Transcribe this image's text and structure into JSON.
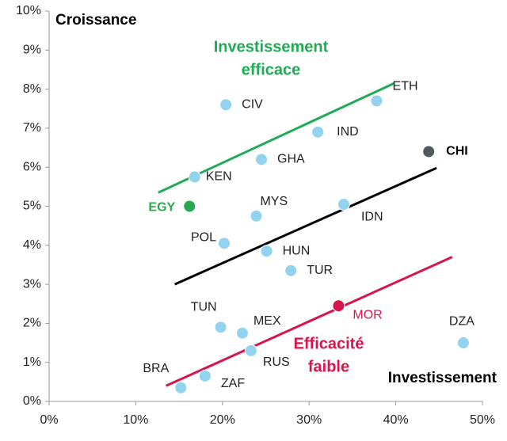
{
  "chart_data": {
    "type": "scatter",
    "xlim": [
      0,
      50
    ],
    "ylim": [
      0,
      10
    ],
    "xticks": [
      {
        "value": 0,
        "label": "0%"
      },
      {
        "value": 10,
        "label": "10%"
      },
      {
        "value": 20,
        "label": "20%"
      },
      {
        "value": 30,
        "label": "30%"
      },
      {
        "value": 40,
        "label": "40%"
      },
      {
        "value": 50,
        "label": "50%"
      }
    ],
    "yticks": [
      {
        "value": 0,
        "label": "0%"
      },
      {
        "value": 1,
        "label": "1%"
      },
      {
        "value": 2,
        "label": "2%"
      },
      {
        "value": 3,
        "label": "3%"
      },
      {
        "value": 4,
        "label": "4%"
      },
      {
        "value": 5,
        "label": "5%"
      },
      {
        "value": 6,
        "label": "6%"
      },
      {
        "value": 7,
        "label": "7%"
      },
      {
        "value": 8,
        "label": "8%"
      },
      {
        "value": 9,
        "label": "9%"
      },
      {
        "value": 10,
        "label": "10%"
      }
    ],
    "y_label": "Croissance",
    "x_label": "Investissement",
    "points": [
      {
        "name": "ETH",
        "x": 37.8,
        "y": 7.7,
        "color": "#92d3f0",
        "label_color": "#222222"
      },
      {
        "name": "CIV",
        "x": 20.4,
        "y": 7.6,
        "color": "#92d3f0",
        "label_color": "#222222"
      },
      {
        "name": "IND",
        "x": 31.0,
        "y": 6.9,
        "color": "#92d3f0",
        "label_color": "#222222"
      },
      {
        "name": "CHI",
        "x": 43.8,
        "y": 6.4,
        "color": "#4f5a60",
        "label_color": "#000000",
        "label_bold": true
      },
      {
        "name": "GHA",
        "x": 24.5,
        "y": 6.2,
        "color": "#92d3f0",
        "label_color": "#222222"
      },
      {
        "name": "KEN",
        "x": 16.8,
        "y": 5.75,
        "color": "#92d3f0",
        "label_color": "#222222"
      },
      {
        "name": "EGY",
        "x": 16.2,
        "y": 5.0,
        "color": "#2aa84f",
        "label_color": "#2aa84f",
        "label_bold": true
      },
      {
        "name": "IDN",
        "x": 34.0,
        "y": 5.05,
        "color": "#92d3f0",
        "label_color": "#222222"
      },
      {
        "name": "MYS",
        "x": 23.9,
        "y": 4.75,
        "color": "#92d3f0",
        "label_color": "#222222"
      },
      {
        "name": "POL",
        "x": 20.2,
        "y": 4.05,
        "color": "#92d3f0",
        "label_color": "#222222"
      },
      {
        "name": "HUN",
        "x": 25.1,
        "y": 3.85,
        "color": "#92d3f0",
        "label_color": "#222222"
      },
      {
        "name": "TUR",
        "x": 27.9,
        "y": 3.35,
        "color": "#92d3f0",
        "label_color": "#222222"
      },
      {
        "name": "MOR",
        "x": 33.4,
        "y": 2.45,
        "color": "#d6164a",
        "label_color": "#d6164a"
      },
      {
        "name": "TUN",
        "x": 19.8,
        "y": 1.9,
        "color": "#92d3f0",
        "label_color": "#222222"
      },
      {
        "name": "MEX",
        "x": 22.3,
        "y": 1.75,
        "color": "#92d3f0",
        "label_color": "#222222"
      },
      {
        "name": "RUS",
        "x": 23.3,
        "y": 1.3,
        "color": "#92d3f0",
        "label_color": "#222222"
      },
      {
        "name": "DZA",
        "x": 47.8,
        "y": 1.5,
        "color": "#92d3f0",
        "label_color": "#222222"
      },
      {
        "name": "ZAF",
        "x": 18.0,
        "y": 0.65,
        "color": "#92d3f0",
        "label_color": "#222222"
      },
      {
        "name": "BRA",
        "x": 15.2,
        "y": 0.35,
        "color": "#92d3f0",
        "label_color": "#222222"
      }
    ],
    "trend_lines": [
      {
        "color": "#1faa55",
        "x": [
          12.6,
          39.8
        ],
        "y": [
          5.35,
          8.15
        ]
      },
      {
        "color": "#000000",
        "x": [
          14.5,
          44.7
        ],
        "y": [
          3.0,
          5.98
        ]
      },
      {
        "color": "#d6164a",
        "x": [
          13.5,
          46.5
        ],
        "y": [
          0.4,
          3.7
        ]
      }
    ],
    "annotations": [
      {
        "lines": [
          "Investissement",
          "efficace"
        ],
        "color": "#1faa55"
      },
      {
        "lines": [
          "Efficacité",
          "faible"
        ],
        "color": "#d6164a"
      }
    ]
  }
}
